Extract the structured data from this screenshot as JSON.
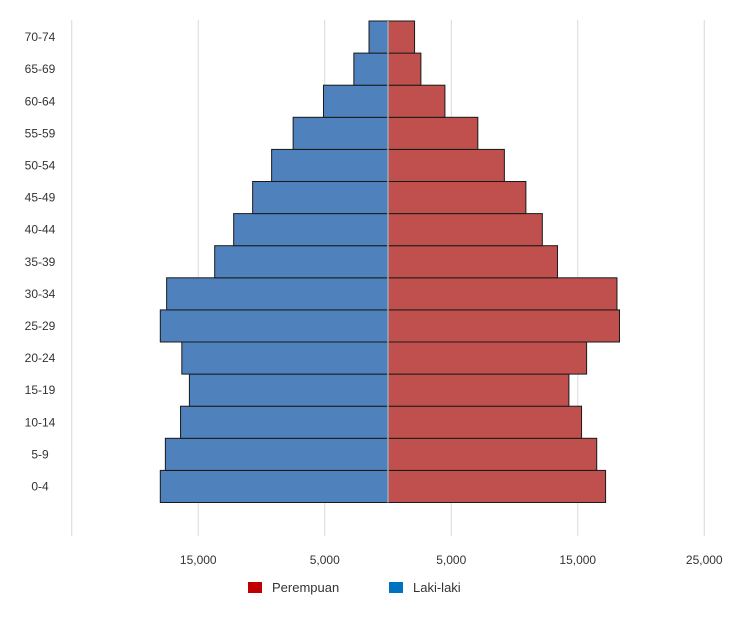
{
  "chart_data": {
    "type": "bar",
    "orientation": "horizontal",
    "categories": [
      "0-4",
      "5-9",
      "10-14",
      "15-19",
      "20-24",
      "25-29",
      "30-34",
      "35-39",
      "40-44",
      "45-49",
      "50-54",
      "55-59",
      "60-64",
      "65-69",
      "70-74"
    ],
    "series": [
      {
        "name": "Perempuan",
        "side": "right",
        "color": "#c0504d",
        "values": [
          17200,
          16500,
          15300,
          14300,
          15700,
          18300,
          18100,
          13400,
          12200,
          10900,
          9200,
          7100,
          4500,
          2600,
          2100
        ]
      },
      {
        "name": "Laki-laki",
        "side": "left",
        "color": "#4f81bd",
        "values": [
          18000,
          17600,
          16400,
          15700,
          16300,
          18000,
          17500,
          13700,
          12200,
          10700,
          9200,
          7500,
          5100,
          2700,
          1500
        ]
      }
    ],
    "x_ticks": [
      "15,000",
      "5,000",
      "5,000",
      "15,000",
      "25,000"
    ],
    "xlim": [
      -25000,
      25000
    ],
    "grid": "vertical",
    "legend_position": "bottom",
    "legend": [
      {
        "label": "Perempuan",
        "color": "#c00000"
      },
      {
        "label": "Laki-laki",
        "color": "#0070c0"
      }
    ]
  }
}
